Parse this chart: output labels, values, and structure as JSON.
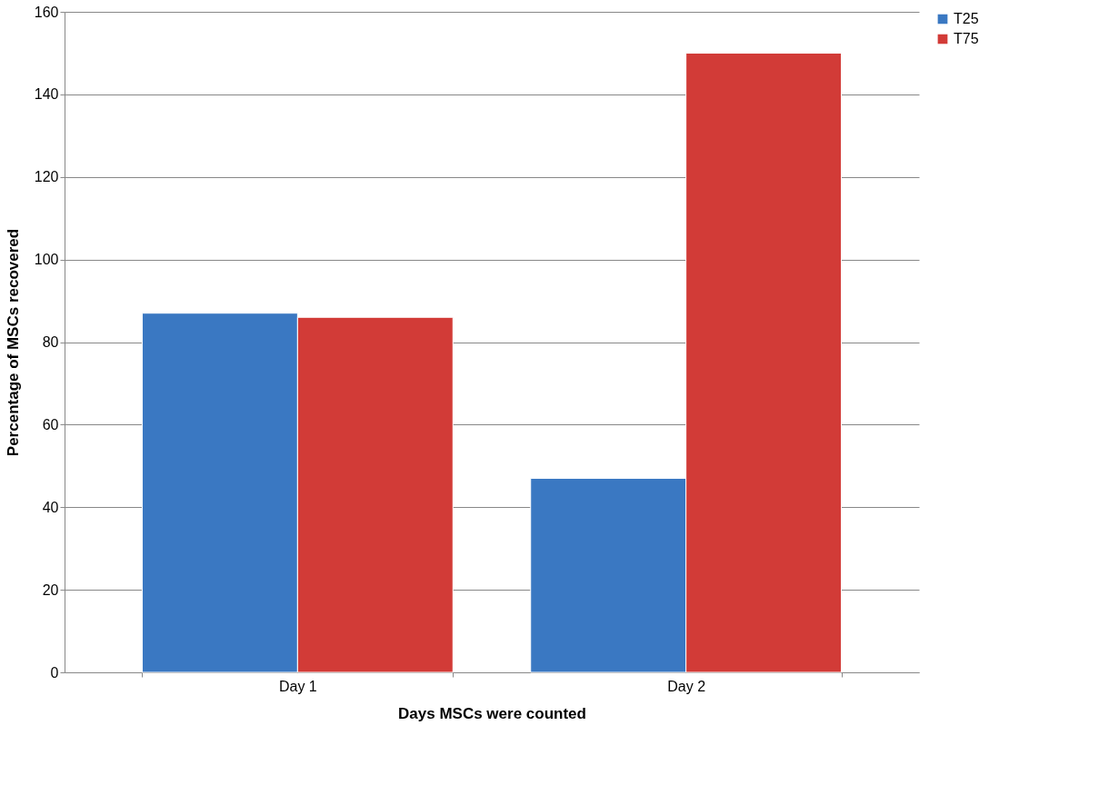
{
  "chart_data": {
    "type": "bar",
    "xlabel": "Days MSCs were counted",
    "ylabel": "Percentage of MSCs recovered",
    "categories": [
      "Day 1",
      "Day 2"
    ],
    "series": [
      {
        "name": "T25",
        "color": "#3a78c2",
        "values": [
          87,
          47
        ]
      },
      {
        "name": "T75",
        "color": "#d23b37",
        "values": [
          86,
          150
        ]
      }
    ],
    "ylim": [
      0,
      160
    ],
    "yticks": [
      0,
      20,
      40,
      60,
      80,
      100,
      120,
      140,
      160
    ],
    "grid": "y",
    "legend": "right"
  }
}
